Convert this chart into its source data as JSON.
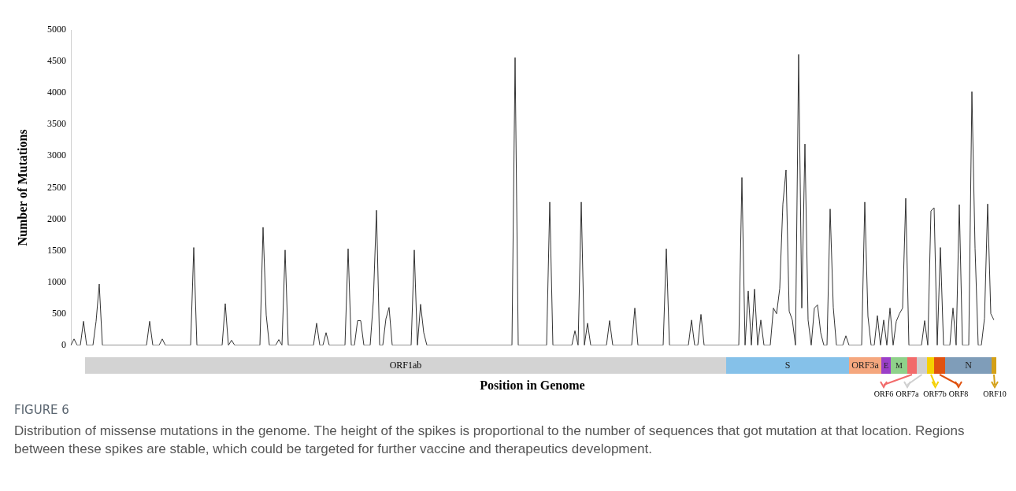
{
  "chart_data": {
    "type": "line",
    "title": "FIGURE 6",
    "subtitle": "Distribution of missense mutations in the genome. The height of the spikes is proportional to the number of sequences that got mutation at that location. Regions between these spikes are stable, which could be targeted for further vaccine and therapeutics development.",
    "xlabel": "Position in Genome",
    "ylabel": "Number of Mutations",
    "annotations": [
      "ORF1ab",
      "S",
      "ORF3a",
      "E",
      "M",
      "ORF6",
      "ORF7a",
      "ORF7b",
      "ORF8",
      "N",
      "ORF10"
    ],
    "categories": [
      null,
      null,
      null,
      null,
      null,
      null,
      null,
      null,
      null,
      null,
      null,
      null,
      null,
      null,
      null,
      null,
      null,
      null,
      null,
      null,
      null,
      null,
      null,
      null,
      null,
      null,
      null,
      null,
      null,
      null,
      null,
      null,
      null,
      null,
      null,
      null,
      null,
      null,
      null,
      null,
      null,
      null,
      null,
      null,
      null,
      null,
      null,
      null,
      null,
      null,
      null,
      null,
      null,
      null,
      null,
      null,
      null,
      null,
      null,
      null,
      null,
      null,
      null,
      null,
      null,
      null,
      null,
      null,
      null,
      null,
      null,
      null,
      null,
      null,
      null,
      null,
      null,
      null,
      null,
      null,
      null,
      null,
      null,
      null,
      null,
      null,
      null,
      null,
      null,
      null,
      null,
      null,
      null,
      null,
      null,
      null,
      null,
      null,
      null,
      null,
      null,
      null,
      null,
      null,
      null,
      null,
      null,
      null,
      null,
      null,
      null,
      null,
      null,
      null,
      null,
      null,
      null,
      null,
      null,
      null,
      null,
      null,
      null,
      null,
      null,
      null,
      null,
      null,
      null,
      null,
      null,
      null,
      null,
      null,
      null,
      null,
      null,
      null,
      null,
      null,
      null,
      null,
      null,
      null,
      null,
      null,
      null,
      null,
      null,
      null,
      null,
      null,
      null,
      null,
      null,
      null,
      null,
      null,
      null,
      null,
      null,
      null,
      null,
      null,
      null,
      null,
      null,
      null,
      null,
      null,
      null,
      null,
      null,
      null,
      null,
      null,
      null,
      null,
      null,
      null,
      null,
      null,
      null,
      null,
      null,
      null,
      null,
      null,
      null,
      null,
      null,
      null,
      null,
      null,
      null,
      null,
      null,
      null,
      null,
      null,
      null,
      null,
      null,
      null,
      null,
      null,
      null,
      null,
      null,
      null,
      null,
      null,
      null,
      null,
      null,
      null,
      null,
      null,
      null,
      null,
      null,
      null,
      null,
      null,
      null,
      null,
      null,
      null,
      null,
      null,
      null,
      null,
      null,
      null,
      null,
      null,
      null,
      null,
      null,
      null,
      null,
      null,
      null,
      null,
      null,
      null,
      null,
      null,
      null,
      null,
      null,
      null,
      null,
      null,
      null,
      null,
      null,
      null,
      null,
      null,
      null,
      null,
      null,
      null,
      null,
      null,
      null,
      null,
      null,
      null,
      null,
      null,
      null,
      null,
      null,
      null,
      null,
      null,
      null,
      null,
      null,
      null,
      null,
      null,
      null,
      null,
      null,
      null,
      null,
      null,
      null,
      null,
      null,
      null
    ],
    "series": [
      {
        "color": "#333333",
        "values": [
          0,
          100,
          0,
          0,
          380,
          0,
          0,
          0,
          380,
          970,
          0,
          0,
          0,
          0,
          0,
          0,
          0,
          0,
          0,
          0,
          0,
          0,
          0,
          0,
          0,
          380,
          0,
          0,
          0,
          100,
          0,
          0,
          0,
          0,
          0,
          0,
          0,
          0,
          0,
          1550,
          0,
          0,
          0,
          0,
          0,
          0,
          0,
          0,
          0,
          660,
          0,
          80,
          0,
          0,
          0,
          0,
          0,
          0,
          0,
          0,
          0,
          1870,
          480,
          0,
          0,
          0,
          90,
          0,
          1510,
          0,
          0,
          0,
          0,
          0,
          0,
          0,
          0,
          0,
          350,
          0,
          0,
          200,
          0,
          0,
          0,
          0,
          0,
          0,
          1530,
          0,
          0,
          390,
          390,
          0,
          0,
          0,
          700,
          2140,
          0,
          0,
          420,
          600,
          0,
          0,
          0,
          0,
          0,
          0,
          0,
          1510,
          0,
          650,
          200,
          0,
          0,
          0,
          0,
          0,
          0,
          0,
          0,
          0,
          0,
          0,
          0,
          0,
          0,
          0,
          0,
          0,
          0,
          0,
          0,
          0,
          0,
          0,
          0,
          0,
          0,
          0,
          0,
          4560,
          0,
          0,
          0,
          0,
          0,
          0,
          0,
          0,
          0,
          0,
          2270,
          0,
          0,
          0,
          0,
          0,
          0,
          0,
          230,
          0,
          2270,
          0,
          350,
          0,
          0,
          0,
          0,
          0,
          0,
          390,
          0,
          0,
          0,
          0,
          0,
          0,
          0,
          590,
          0,
          0,
          0,
          0,
          0,
          0,
          0,
          0,
          0,
          1530,
          0,
          0,
          0,
          0,
          0,
          0,
          0,
          400,
          0,
          0,
          490,
          0,
          0,
          0,
          0,
          0,
          0,
          0,
          0,
          0,
          0,
          0,
          0,
          2660,
          0,
          860,
          0,
          890,
          0,
          400,
          0,
          0,
          0,
          590,
          500,
          900,
          2240,
          2780,
          540,
          400,
          0,
          4610,
          590,
          3190,
          400,
          0,
          590,
          640,
          200,
          0,
          0,
          2160,
          600,
          0,
          0,
          0,
          150,
          0,
          0,
          0,
          0,
          0,
          2270,
          460,
          0,
          0,
          470,
          0,
          400,
          0,
          590,
          0,
          380,
          500,
          590,
          2330,
          0,
          0,
          0,
          0,
          0,
          390,
          0,
          2130,
          2180,
          0,
          1550,
          0,
          0,
          0,
          590,
          0,
          2230,
          0,
          0,
          0,
          4020,
          1540,
          0,
          0,
          430,
          2240,
          500,
          400
        ]
      }
    ],
    "ylim": [
      0,
      5000
    ],
    "yticks": [
      0,
      500,
      1000,
      1500,
      2000,
      2500,
      3000,
      3500,
      4000,
      4500,
      5000
    ],
    "tick_labels": "y",
    "grid": false,
    "legend": false,
    "marker": "none",
    "line_style": "solid"
  }
}
